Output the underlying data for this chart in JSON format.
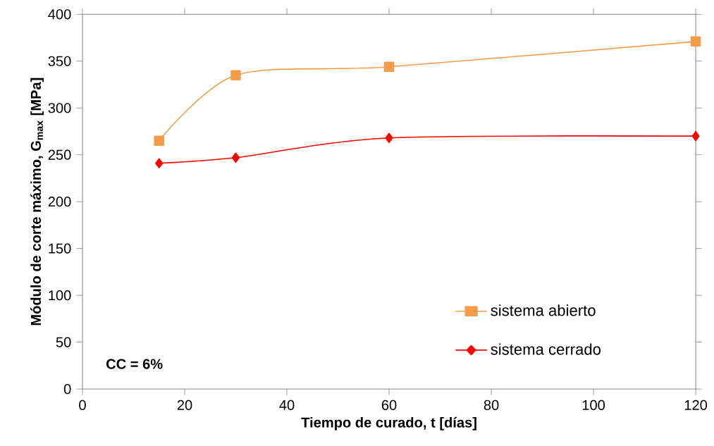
{
  "chart_data": {
    "type": "line",
    "xlabel": "Tiempo de curado, t [días]",
    "ylabel": "Módulo de corte máximo, G$_{max}$ [MPa]",
    "xlim": [
      0,
      120
    ],
    "xticks": [
      0,
      20,
      40,
      60,
      80,
      100,
      120
    ],
    "ylim": [
      0,
      400
    ],
    "yticks": [
      0,
      50,
      100,
      150,
      200,
      250,
      300,
      350,
      400
    ],
    "grid": false,
    "legend": "bottom right",
    "line_style": "solid",
    "annotations": [
      "CC = 6%"
    ],
    "series": [
      {
        "name": "sistema abierto",
        "color": "#f59c4a",
        "marker": "square",
        "x": [
          15,
          30,
          60,
          120
        ],
        "values": [
          265,
          335,
          344,
          371
        ]
      },
      {
        "name": "sistema cerrado",
        "color": "#ff0000",
        "marker": "diamond",
        "x": [
          15,
          30,
          60,
          120
        ],
        "values": [
          241,
          247,
          268,
          270
        ]
      }
    ]
  }
}
